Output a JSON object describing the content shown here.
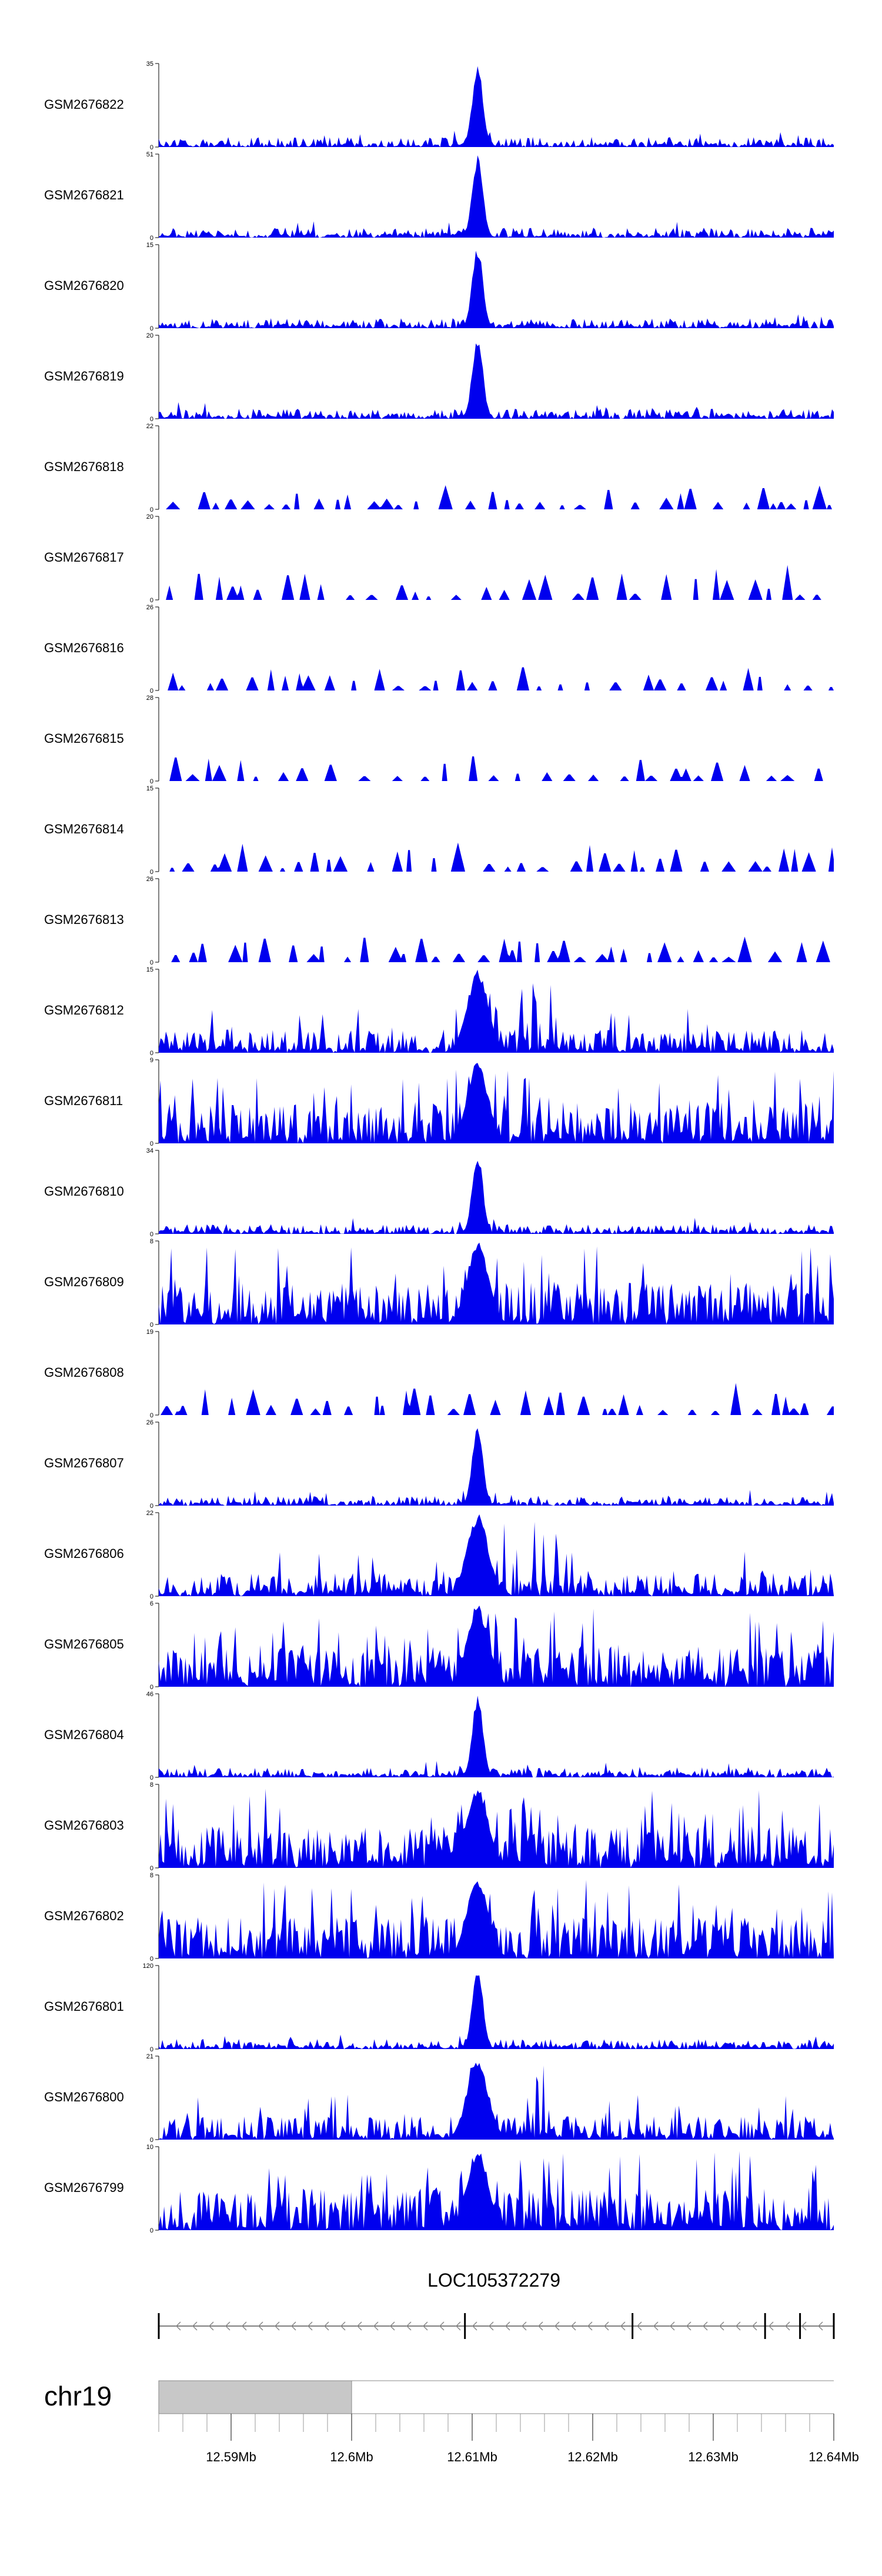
{
  "chart_data": {
    "type": "area",
    "region_start_mb": 12.584,
    "region_end_mb": 12.64,
    "peak_mb": 12.6105,
    "tracks": [
      {
        "name": "GSM2676822",
        "ymax": 35,
        "peak": 35,
        "style": "sharp"
      },
      {
        "name": "GSM2676821",
        "ymax": 51,
        "peak": 51,
        "style": "sharp"
      },
      {
        "name": "GSM2676820",
        "ymax": 15,
        "peak": 15,
        "style": "sharp"
      },
      {
        "name": "GSM2676819",
        "ymax": 20,
        "peak": 20,
        "style": "sharp"
      },
      {
        "name": "GSM2676818",
        "ymax": 22,
        "peak": 6,
        "style": "sparse"
      },
      {
        "name": "GSM2676817",
        "ymax": 20,
        "peak": 8,
        "style": "sparse"
      },
      {
        "name": "GSM2676816",
        "ymax": 26,
        "peak": 8,
        "style": "sparse"
      },
      {
        "name": "GSM2676815",
        "ymax": 28,
        "peak": 10,
        "style": "sparse"
      },
      {
        "name": "GSM2676814",
        "ymax": 15,
        "peak": 6,
        "style": "sparse"
      },
      {
        "name": "GSM2676813",
        "ymax": 26,
        "peak": 9,
        "style": "sparse"
      },
      {
        "name": "GSM2676812",
        "ymax": 15,
        "peak": 15,
        "style": "medium"
      },
      {
        "name": "GSM2676811",
        "ymax": 9,
        "peak": 9,
        "style": "dense"
      },
      {
        "name": "GSM2676810",
        "ymax": 34,
        "peak": 34,
        "style": "sharp"
      },
      {
        "name": "GSM2676809",
        "ymax": 8,
        "peak": 8,
        "style": "dense"
      },
      {
        "name": "GSM2676808",
        "ymax": 19,
        "peak": 8,
        "style": "sparse"
      },
      {
        "name": "GSM2676807",
        "ymax": 26,
        "peak": 26,
        "style": "sharp"
      },
      {
        "name": "GSM2676806",
        "ymax": 22,
        "peak": 22,
        "style": "medium"
      },
      {
        "name": "GSM2676805",
        "ymax": 6,
        "peak": 6,
        "style": "dense"
      },
      {
        "name": "GSM2676804",
        "ymax": 46,
        "peak": 46,
        "style": "sharp"
      },
      {
        "name": "GSM2676803",
        "ymax": 8,
        "peak": 8,
        "style": "dense"
      },
      {
        "name": "GSM2676802",
        "ymax": 8,
        "peak": 8,
        "style": "dense"
      },
      {
        "name": "GSM2676801",
        "ymax": 120,
        "peak": 120,
        "style": "sharp"
      },
      {
        "name": "GSM2676800",
        "ymax": 21,
        "peak": 21,
        "style": "medium"
      },
      {
        "name": "GSM2676799",
        "ymax": 10,
        "peak": 10,
        "style": "dense"
      }
    ],
    "gene": {
      "name": "LOC105372279",
      "strand": "-",
      "exons_mb": [
        12.584,
        12.6094,
        12.6233,
        12.6343,
        12.6372,
        12.64
      ]
    },
    "ideogram": {
      "chromosome": "chr19",
      "highlight_mb": [
        12.584,
        12.6
      ]
    },
    "x_ticks": [
      {
        "mb": 12.59,
        "label": "12.59Mb"
      },
      {
        "mb": 12.6,
        "label": "12.6Mb"
      },
      {
        "mb": 12.61,
        "label": "12.61Mb"
      },
      {
        "mb": 12.62,
        "label": "12.62Mb"
      },
      {
        "mb": 12.63,
        "label": "12.63Mb"
      },
      {
        "mb": 12.64,
        "label": "12.64Mb"
      }
    ],
    "colors": {
      "signal": "#0000ee",
      "axis": "#000000",
      "ideogram_highlight": "#c8c8c8"
    }
  }
}
